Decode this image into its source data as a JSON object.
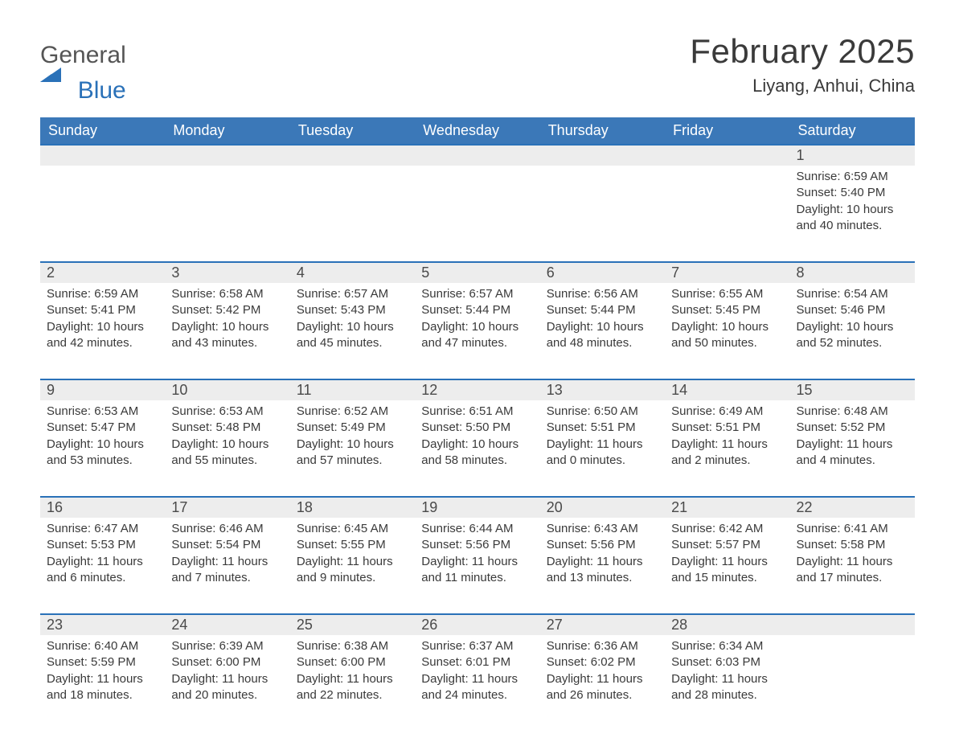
{
  "brand": {
    "general": "General",
    "blue": "Blue",
    "flag_color": "#2a71b8",
    "text_color_general": "#555555",
    "text_color_blue": "#2a71b8"
  },
  "title": {
    "month_year": "February 2025",
    "location": "Liyang, Anhui, China",
    "title_color": "#3a3a3a",
    "title_fontsize": 42,
    "location_fontsize": 22
  },
  "theme": {
    "header_bg": "#3b78b8",
    "header_text": "#ffffff",
    "daynum_bg": "#ededed",
    "daynum_border_top": "#2a71b8",
    "body_bg": "#ffffff",
    "text_color": "#3a3a3a",
    "font_family": "Segoe UI, Arial, sans-serif",
    "header_fontsize": 18,
    "daynum_fontsize": 18,
    "detail_fontsize": 15
  },
  "calendar": {
    "type": "table",
    "columns": [
      "Sunday",
      "Monday",
      "Tuesday",
      "Wednesday",
      "Thursday",
      "Friday",
      "Saturday"
    ],
    "weeks": [
      [
        {
          "num": "",
          "sunrise": "",
          "sunset": "",
          "daylight": ""
        },
        {
          "num": "",
          "sunrise": "",
          "sunset": "",
          "daylight": ""
        },
        {
          "num": "",
          "sunrise": "",
          "sunset": "",
          "daylight": ""
        },
        {
          "num": "",
          "sunrise": "",
          "sunset": "",
          "daylight": ""
        },
        {
          "num": "",
          "sunrise": "",
          "sunset": "",
          "daylight": ""
        },
        {
          "num": "",
          "sunrise": "",
          "sunset": "",
          "daylight": ""
        },
        {
          "num": "1",
          "sunrise": "Sunrise: 6:59 AM",
          "sunset": "Sunset: 5:40 PM",
          "daylight": "Daylight: 10 hours and 40 minutes."
        }
      ],
      [
        {
          "num": "2",
          "sunrise": "Sunrise: 6:59 AM",
          "sunset": "Sunset: 5:41 PM",
          "daylight": "Daylight: 10 hours and 42 minutes."
        },
        {
          "num": "3",
          "sunrise": "Sunrise: 6:58 AM",
          "sunset": "Sunset: 5:42 PM",
          "daylight": "Daylight: 10 hours and 43 minutes."
        },
        {
          "num": "4",
          "sunrise": "Sunrise: 6:57 AM",
          "sunset": "Sunset: 5:43 PM",
          "daylight": "Daylight: 10 hours and 45 minutes."
        },
        {
          "num": "5",
          "sunrise": "Sunrise: 6:57 AM",
          "sunset": "Sunset: 5:44 PM",
          "daylight": "Daylight: 10 hours and 47 minutes."
        },
        {
          "num": "6",
          "sunrise": "Sunrise: 6:56 AM",
          "sunset": "Sunset: 5:44 PM",
          "daylight": "Daylight: 10 hours and 48 minutes."
        },
        {
          "num": "7",
          "sunrise": "Sunrise: 6:55 AM",
          "sunset": "Sunset: 5:45 PM",
          "daylight": "Daylight: 10 hours and 50 minutes."
        },
        {
          "num": "8",
          "sunrise": "Sunrise: 6:54 AM",
          "sunset": "Sunset: 5:46 PM",
          "daylight": "Daylight: 10 hours and 52 minutes."
        }
      ],
      [
        {
          "num": "9",
          "sunrise": "Sunrise: 6:53 AM",
          "sunset": "Sunset: 5:47 PM",
          "daylight": "Daylight: 10 hours and 53 minutes."
        },
        {
          "num": "10",
          "sunrise": "Sunrise: 6:53 AM",
          "sunset": "Sunset: 5:48 PM",
          "daylight": "Daylight: 10 hours and 55 minutes."
        },
        {
          "num": "11",
          "sunrise": "Sunrise: 6:52 AM",
          "sunset": "Sunset: 5:49 PM",
          "daylight": "Daylight: 10 hours and 57 minutes."
        },
        {
          "num": "12",
          "sunrise": "Sunrise: 6:51 AM",
          "sunset": "Sunset: 5:50 PM",
          "daylight": "Daylight: 10 hours and 58 minutes."
        },
        {
          "num": "13",
          "sunrise": "Sunrise: 6:50 AM",
          "sunset": "Sunset: 5:51 PM",
          "daylight": "Daylight: 11 hours and 0 minutes."
        },
        {
          "num": "14",
          "sunrise": "Sunrise: 6:49 AM",
          "sunset": "Sunset: 5:51 PM",
          "daylight": "Daylight: 11 hours and 2 minutes."
        },
        {
          "num": "15",
          "sunrise": "Sunrise: 6:48 AM",
          "sunset": "Sunset: 5:52 PM",
          "daylight": "Daylight: 11 hours and 4 minutes."
        }
      ],
      [
        {
          "num": "16",
          "sunrise": "Sunrise: 6:47 AM",
          "sunset": "Sunset: 5:53 PM",
          "daylight": "Daylight: 11 hours and 6 minutes."
        },
        {
          "num": "17",
          "sunrise": "Sunrise: 6:46 AM",
          "sunset": "Sunset: 5:54 PM",
          "daylight": "Daylight: 11 hours and 7 minutes."
        },
        {
          "num": "18",
          "sunrise": "Sunrise: 6:45 AM",
          "sunset": "Sunset: 5:55 PM",
          "daylight": "Daylight: 11 hours and 9 minutes."
        },
        {
          "num": "19",
          "sunrise": "Sunrise: 6:44 AM",
          "sunset": "Sunset: 5:56 PM",
          "daylight": "Daylight: 11 hours and 11 minutes."
        },
        {
          "num": "20",
          "sunrise": "Sunrise: 6:43 AM",
          "sunset": "Sunset: 5:56 PM",
          "daylight": "Daylight: 11 hours and 13 minutes."
        },
        {
          "num": "21",
          "sunrise": "Sunrise: 6:42 AM",
          "sunset": "Sunset: 5:57 PM",
          "daylight": "Daylight: 11 hours and 15 minutes."
        },
        {
          "num": "22",
          "sunrise": "Sunrise: 6:41 AM",
          "sunset": "Sunset: 5:58 PM",
          "daylight": "Daylight: 11 hours and 17 minutes."
        }
      ],
      [
        {
          "num": "23",
          "sunrise": "Sunrise: 6:40 AM",
          "sunset": "Sunset: 5:59 PM",
          "daylight": "Daylight: 11 hours and 18 minutes."
        },
        {
          "num": "24",
          "sunrise": "Sunrise: 6:39 AM",
          "sunset": "Sunset: 6:00 PM",
          "daylight": "Daylight: 11 hours and 20 minutes."
        },
        {
          "num": "25",
          "sunrise": "Sunrise: 6:38 AM",
          "sunset": "Sunset: 6:00 PM",
          "daylight": "Daylight: 11 hours and 22 minutes."
        },
        {
          "num": "26",
          "sunrise": "Sunrise: 6:37 AM",
          "sunset": "Sunset: 6:01 PM",
          "daylight": "Daylight: 11 hours and 24 minutes."
        },
        {
          "num": "27",
          "sunrise": "Sunrise: 6:36 AM",
          "sunset": "Sunset: 6:02 PM",
          "daylight": "Daylight: 11 hours and 26 minutes."
        },
        {
          "num": "28",
          "sunrise": "Sunrise: 6:34 AM",
          "sunset": "Sunset: 6:03 PM",
          "daylight": "Daylight: 11 hours and 28 minutes."
        },
        {
          "num": "",
          "sunrise": "",
          "sunset": "",
          "daylight": ""
        }
      ]
    ]
  }
}
